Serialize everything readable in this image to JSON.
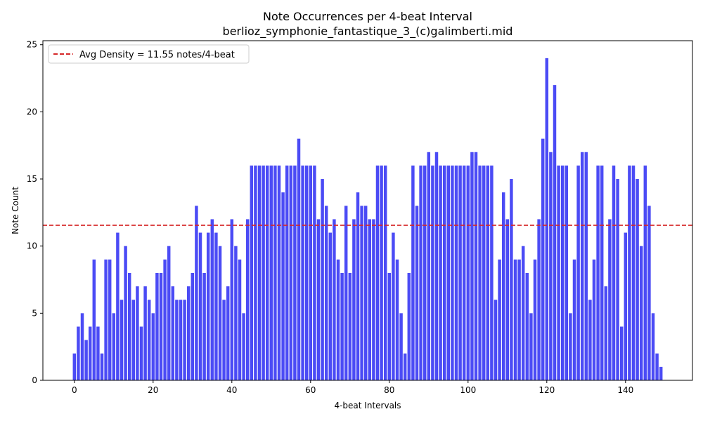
{
  "chart_data": {
    "type": "bar",
    "title": "Note Occurrences per 4-beat Interval",
    "subtitle": "berlioz_symphonie_fantastique_3_(c)galimberti.mid",
    "xlabel": "4-beat Intervals",
    "ylabel": "Note Count",
    "xlim": [
      -8,
      157
    ],
    "ylim": [
      0,
      25.3
    ],
    "xticks": [
      0,
      20,
      40,
      60,
      80,
      100,
      120,
      140
    ],
    "yticks": [
      0,
      5,
      10,
      15,
      20,
      25
    ],
    "bar_color": "#4b4bf5",
    "average_line": {
      "value": 11.55,
      "label": "Avg Density = 11.55 notes/4-beat",
      "color": "#d62728"
    },
    "legend_placement": "top-left",
    "grid": false,
    "values": [
      2,
      4,
      5,
      3,
      4,
      9,
      4,
      2,
      9,
      9,
      5,
      11,
      6,
      10,
      8,
      6,
      7,
      4,
      7,
      6,
      5,
      8,
      8,
      9,
      10,
      7,
      6,
      6,
      6,
      7,
      8,
      13,
      11,
      8,
      11,
      12,
      11,
      10,
      6,
      7,
      12,
      10,
      9,
      5,
      12,
      16,
      16,
      16,
      16,
      16,
      16,
      16,
      16,
      14,
      16,
      16,
      16,
      18,
      16,
      16,
      16,
      16,
      12,
      15,
      13,
      11,
      12,
      9,
      8,
      13,
      8,
      12,
      14,
      13,
      13,
      12,
      12,
      16,
      16,
      16,
      8,
      11,
      9,
      5,
      2,
      8,
      16,
      13,
      16,
      16,
      17,
      16,
      17,
      16,
      16,
      16,
      16,
      16,
      16,
      16,
      16,
      17,
      17,
      16,
      16,
      16,
      16,
      6,
      9,
      14,
      12,
      15,
      9,
      9,
      10,
      8,
      5,
      9,
      12,
      18,
      24,
      17,
      22,
      16,
      16,
      16,
      5,
      9,
      16,
      17,
      17,
      6,
      9,
      16,
      16,
      7,
      12,
      16,
      15,
      4,
      11,
      16,
      16,
      15,
      10,
      16,
      13,
      5,
      2,
      1
    ]
  }
}
